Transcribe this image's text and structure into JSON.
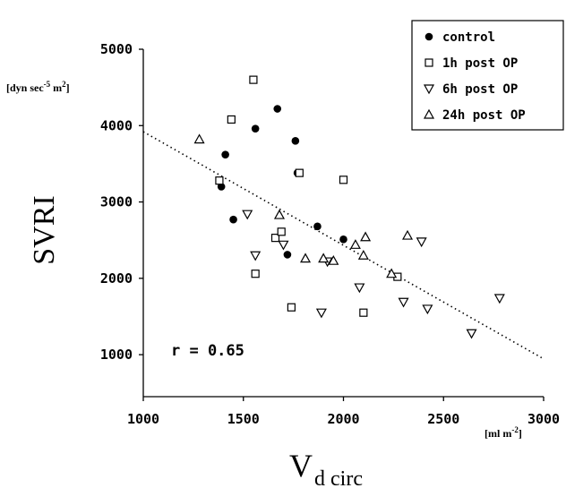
{
  "chart_data": {
    "type": "scatter",
    "xlabel": "V",
    "xlabel_sub": "d circ",
    "ylabel": "SVRI",
    "y_unit": "[dyn sec",
    "y_unit_sup": "-5",
    "y_unit_end": " m",
    "y_unit_sup2": "2",
    "y_unit_close": "]",
    "x_unit": "[ml m",
    "x_unit_sup": "-2",
    "x_unit_close": "]",
    "xlim": [
      1000,
      3000
    ],
    "ylim": [
      450,
      5000
    ],
    "x_ticks": [
      "1000",
      "1500",
      "2000",
      "2500",
      "3000"
    ],
    "y_ticks": [
      "1000",
      "2000",
      "3000",
      "4000",
      "5000"
    ],
    "x_tick_values": [
      1000,
      1500,
      2000,
      2500,
      3000
    ],
    "y_tick_values": [
      1000,
      2000,
      3000,
      4000,
      5000
    ],
    "annotation": "r = 0.65",
    "legend_position": "top-right",
    "regression_line": {
      "x": [
        1000,
        2990
      ],
      "y": [
        3920,
        960
      ],
      "style": "dotted"
    },
    "series": [
      {
        "name": "control",
        "marker": "filled-circle",
        "x": [
          1390,
          1410,
          1450,
          1560,
          1670,
          1720,
          1760,
          1770,
          1870,
          2000
        ],
        "y": [
          3200,
          3620,
          2770,
          3960,
          4220,
          2310,
          3800,
          3380,
          2680,
          2510
        ]
      },
      {
        "name": "1h post OP",
        "marker": "open-square",
        "x": [
          1380,
          1440,
          1550,
          1560,
          1660,
          1690,
          1740,
          1780,
          2000,
          2100,
          2270
        ],
        "y": [
          3280,
          4080,
          4600,
          2060,
          2530,
          2610,
          1620,
          3380,
          3290,
          1550,
          2020
        ]
      },
      {
        "name": "6h post OP",
        "marker": "open-triangle-down",
        "x": [
          1520,
          1560,
          1700,
          1890,
          1920,
          2080,
          2300,
          2390,
          2420,
          2640,
          2780
        ],
        "y": [
          2840,
          2300,
          2440,
          1550,
          2220,
          1880,
          1690,
          2480,
          1600,
          1280,
          1740
        ]
      },
      {
        "name": "24h post OP",
        "marker": "open-triangle-up",
        "x": [
          1280,
          1680,
          1810,
          1900,
          1950,
          2060,
          2100,
          2110,
          2240,
          2320
        ],
        "y": [
          3820,
          2830,
          2260,
          2260,
          2230,
          2440,
          2300,
          2540,
          2060,
          2560
        ]
      }
    ]
  }
}
